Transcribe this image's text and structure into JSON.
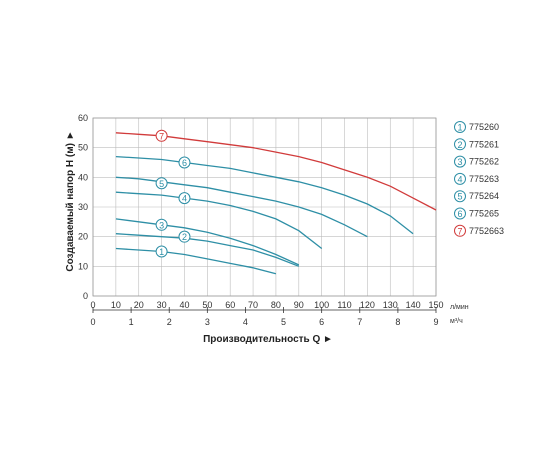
{
  "chart_data": {
    "type": "line",
    "ylabel": "Создаваемый напор Н (м) ►",
    "xlabel": "Производительность Q ►",
    "x_unit_primary": "л/мин",
    "x_unit_secondary": "м³/ч",
    "xlim": [
      0,
      150
    ],
    "ylim": [
      0,
      60
    ],
    "x_ticks": [
      0,
      10,
      20,
      30,
      40,
      50,
      60,
      70,
      80,
      90,
      100,
      110,
      120,
      130,
      140,
      150
    ],
    "x2_ticks": [
      0,
      1,
      2,
      3,
      4,
      5,
      6,
      7,
      8,
      9
    ],
    "y_ticks": [
      0,
      10,
      20,
      30,
      40,
      50,
      60
    ],
    "grid": true,
    "legend_position": "right",
    "series": [
      {
        "name": "775260",
        "badge": "1",
        "color": "#2e8fa6",
        "label_at": [
          30,
          15
        ],
        "x": [
          10,
          20,
          30,
          40,
          50,
          60,
          70,
          80
        ],
        "y": [
          16,
          15.5,
          15,
          14,
          12.5,
          11,
          9.5,
          7.5
        ]
      },
      {
        "name": "775261",
        "badge": "2",
        "color": "#2e8fa6",
        "label_at": [
          40,
          20
        ],
        "x": [
          10,
          20,
          30,
          40,
          50,
          60,
          70,
          80,
          90
        ],
        "y": [
          21,
          20.5,
          20,
          19.5,
          18.5,
          17,
          15.5,
          13,
          10
        ]
      },
      {
        "name": "775262",
        "badge": "3",
        "color": "#2e8fa6",
        "label_at": [
          30,
          24
        ],
        "x": [
          10,
          20,
          30,
          40,
          50,
          60,
          70,
          80,
          90
        ],
        "y": [
          26,
          25,
          24,
          23,
          21.5,
          19.5,
          17,
          14,
          10.5
        ]
      },
      {
        "name": "775263",
        "badge": "4",
        "color": "#2e8fa6",
        "label_at": [
          40,
          33
        ],
        "x": [
          10,
          20,
          30,
          40,
          50,
          60,
          70,
          80,
          90,
          100
        ],
        "y": [
          35,
          34.5,
          34,
          33,
          32,
          30.5,
          28.5,
          26,
          22,
          16
        ]
      },
      {
        "name": "775264",
        "badge": "5",
        "color": "#2e8fa6",
        "label_at": [
          30,
          38
        ],
        "x": [
          10,
          20,
          30,
          40,
          50,
          60,
          70,
          80,
          90,
          100,
          110,
          120
        ],
        "y": [
          40,
          39.5,
          38.5,
          37.5,
          36.5,
          35,
          33.5,
          32,
          30,
          27.5,
          24,
          20
        ]
      },
      {
        "name": "775265",
        "badge": "6",
        "color": "#2e8fa6",
        "label_at": [
          40,
          45
        ],
        "x": [
          10,
          20,
          30,
          40,
          50,
          60,
          70,
          80,
          90,
          100,
          110,
          120,
          130,
          140
        ],
        "y": [
          47,
          46.5,
          46,
          45,
          44,
          43,
          41.5,
          40,
          38.5,
          36.5,
          34,
          31,
          27,
          21
        ]
      },
      {
        "name": "7752663",
        "badge": "7",
        "color": "#d13b3b",
        "label_at": [
          30,
          54
        ],
        "x": [
          10,
          20,
          30,
          40,
          50,
          60,
          70,
          80,
          90,
          100,
          110,
          120,
          130,
          140,
          150
        ],
        "y": [
          55,
          54.5,
          54,
          53,
          52,
          51,
          50,
          48.5,
          47,
          45,
          42.5,
          40,
          37,
          33,
          29
        ]
      }
    ]
  }
}
